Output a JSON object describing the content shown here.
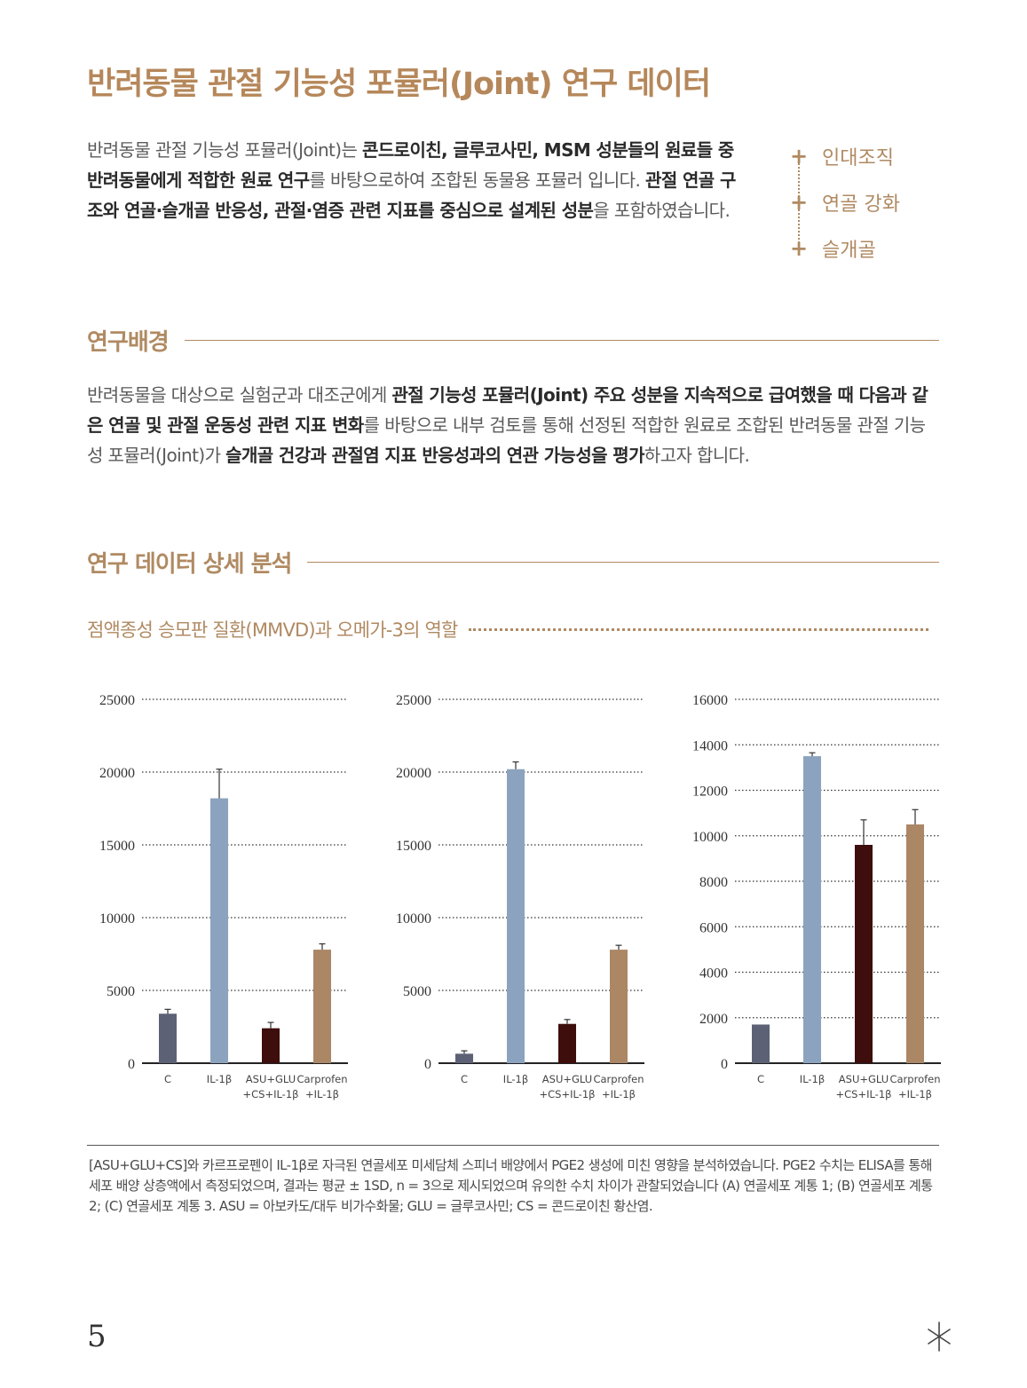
{
  "title": "반려동물 관절 기능성 포뮬러(Joint) 연구 데이터",
  "intro": {
    "p1": "반려동물 관절 기능성 포뮬러(Joint)는 ",
    "b1": "콘드로이친, 글루코사민, MSM 성분들의 원료들 중 반려동물에게 적합한 원료 연구",
    "p2": "를 바탕으로하여 조합된 동물용 포뮬러 입니다. ",
    "b2": "관절 연골 구조와 연골·슬개골 반응성, 관절·염증 관련 지표를 중심으로 설계된 성분",
    "p3": "을 포함하였습니다."
  },
  "tags": [
    "인대조직",
    "연골 강화",
    "슬개골"
  ],
  "background": {
    "heading": "연구배경",
    "p1": "반려동물을 대상으로 실험군과 대조군에게 ",
    "b1": "관절 기능성 포뮬러(Joint) 주요 성분을 지속적으로 급여했을 때 다음과 같은 연골 및 관절 운동성 관련 지표 변화",
    "p2": "를 바탕으로 내부 검토를 통해 선정된 적합한 원료로 조합된 반려동물 관절 기능성 포뮬러(Joint)가 ",
    "b2": "슬개골 건강과 관절염 지표 반응성과의 연관 가능성을 평가",
    "p3": "하고자 합니다."
  },
  "analysis": {
    "heading": "연구 데이터 상세 분석",
    "subheading": "점액종성 승모판 질환(MMVD)과 오메가-3의 역할"
  },
  "colors": {
    "C": "#5d6175",
    "IL-1β": "#8ba3bf",
    "ASU": "#3d0e0c",
    "Carprofen": "#ab8766",
    "accent": "#b08a62"
  },
  "chart_data": [
    {
      "type": "bar",
      "categories": [
        [
          "C"
        ],
        [
          "IL-1β"
        ],
        [
          "ASU+GLU",
          "+CS+IL-1β"
        ],
        [
          "Carprofen",
          "+IL-1β"
        ]
      ],
      "values": [
        3400,
        18200,
        2400,
        7800
      ],
      "errors": [
        300,
        2000,
        400,
        400
      ],
      "yticks": [
        0,
        5000,
        10000,
        15000,
        20000,
        25000
      ],
      "ylim": [
        0,
        25000
      ],
      "grid": true
    },
    {
      "type": "bar",
      "categories": [
        [
          "C"
        ],
        [
          "IL-1β"
        ],
        [
          "ASU+GLU",
          "+CS+IL-1β"
        ],
        [
          "Carprofen",
          "+IL-1β"
        ]
      ],
      "values": [
        650,
        20200,
        2700,
        7800
      ],
      "errors": [
        200,
        500,
        300,
        300
      ],
      "yticks": [
        0,
        5000,
        10000,
        15000,
        20000,
        25000
      ],
      "ylim": [
        0,
        25000
      ],
      "grid": true
    },
    {
      "type": "bar",
      "categories": [
        [
          "C"
        ],
        [
          "IL-1β"
        ],
        [
          "ASU+GLU",
          "+CS+IL-1β"
        ],
        [
          "Carprofen",
          "+IL-1β"
        ]
      ],
      "values": [
        1700,
        13500,
        9600,
        10500
      ],
      "errors": [
        0,
        150,
        1100,
        650
      ],
      "yticks": [
        0,
        2000,
        4000,
        6000,
        8000,
        10000,
        12000,
        14000,
        16000
      ],
      "ylim": [
        0,
        16000
      ],
      "grid": true
    }
  ],
  "footnote": "[ASU+GLU+CS]와 카르프로펜이 IL-1β로 자극된 연골세포 미세담체 스피너 배양에서 PGE2 생성에 미친 영향을 분석하였습니다. PGE2 수치는 ELISA를 통해 세포 배양 상층액에서 측정되었으며, 결과는 평균 ± 1SD, n = 3으로 제시되었으며 유의한 수치 차이가 관찰되었습니다 (A) 연골세포 계통 1; (B) 연골세포 계통 2; (C) 연골세포 계통 3. ASU = 아보카도/대두 비가수화물; GLU = 글루코사민; CS = 콘드로이친 황산염.",
  "page_number": "5",
  "decor_icon": "star-icon"
}
